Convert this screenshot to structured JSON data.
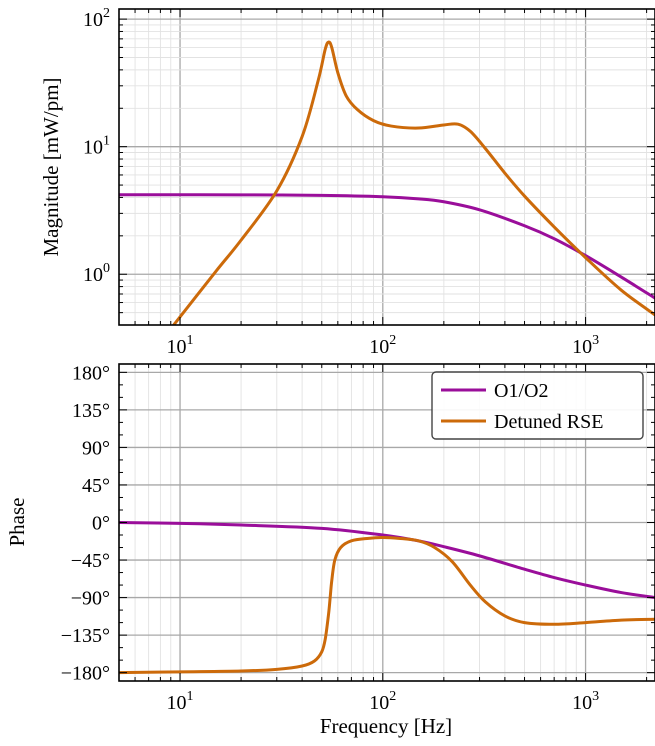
{
  "chart_data": [
    {
      "type": "line",
      "panel": "magnitude",
      "xlabel": "",
      "ylabel": "Magnitude [mW/pm]",
      "xscale": "log",
      "yscale": "log",
      "xlim": [
        5,
        2200
      ],
      "ylim": [
        0.4,
        120
      ],
      "x_ticks": [
        {
          "value": 10,
          "base": "10",
          "exp": "1"
        },
        {
          "value": 100,
          "base": "10",
          "exp": "2"
        },
        {
          "value": 1000,
          "base": "10",
          "exp": "3"
        }
      ],
      "y_ticks": [
        {
          "value": 1,
          "base": "10",
          "exp": "0"
        },
        {
          "value": 10,
          "base": "10",
          "exp": "1"
        },
        {
          "value": 100,
          "base": "10",
          "exp": "2"
        }
      ],
      "grid": true,
      "series": [
        {
          "name": "O1/O2",
          "color": "#9a0e9a",
          "x": [
            5,
            10,
            20,
            50,
            100,
            150,
            200,
            300,
            500,
            700,
            1000,
            1500,
            2200
          ],
          "y": [
            4.2,
            4.2,
            4.19,
            4.15,
            4.05,
            3.9,
            3.7,
            3.2,
            2.4,
            1.9,
            1.4,
            0.95,
            0.65
          ]
        },
        {
          "name": "Detuned RSE",
          "color": "#cc6a0a",
          "x": [
            9.3,
            15,
            20,
            30,
            40,
            48,
            52,
            54,
            56,
            60,
            66,
            75,
            90,
            110,
            150,
            200,
            235,
            270,
            320,
            400,
            500,
            700,
            1000,
            1500,
            2200
          ],
          "y": [
            0.4,
            1.05,
            1.85,
            4.5,
            12,
            33,
            58,
            66,
            60,
            38,
            25,
            19.5,
            16,
            14.5,
            14,
            14.8,
            15,
            13.2,
            9.7,
            6.2,
            4.1,
            2.35,
            1.35,
            0.75,
            0.48
          ]
        }
      ]
    },
    {
      "type": "line",
      "panel": "phase",
      "xlabel": "Frequency [Hz]",
      "ylabel": "Phase",
      "xscale": "log",
      "yscale": "linear",
      "xlim": [
        5,
        2200
      ],
      "ylim": [
        -190,
        190
      ],
      "x_ticks": [
        {
          "value": 10,
          "base": "10",
          "exp": "1"
        },
        {
          "value": 100,
          "base": "10",
          "exp": "2"
        },
        {
          "value": 1000,
          "base": "10",
          "exp": "3"
        }
      ],
      "y_ticks": [
        {
          "value": 180,
          "label": "180°"
        },
        {
          "value": 135,
          "label": "135°"
        },
        {
          "value": 90,
          "label": "90°"
        },
        {
          "value": 45,
          "label": "45°"
        },
        {
          "value": 0,
          "label": "0°"
        },
        {
          "value": -45,
          "label": "−45°"
        },
        {
          "value": -90,
          "label": "−90°"
        },
        {
          "value": -135,
          "label": "−135°"
        },
        {
          "value": -180,
          "label": "−180°"
        }
      ],
      "grid": true,
      "legend": {
        "placement": "top-right",
        "entries": [
          "O1/O2",
          "Detuned RSE"
        ]
      },
      "series": [
        {
          "name": "O1/O2",
          "color": "#9a0e9a",
          "x": [
            5,
            10,
            20,
            50,
            100,
            150,
            200,
            300,
            500,
            700,
            1000,
            1500,
            2200
          ],
          "y": [
            0,
            -1,
            -3,
            -7,
            -15,
            -22,
            -29,
            -40,
            -56,
            -66,
            -75,
            -84,
            -90
          ]
        },
        {
          "name": "Detuned RSE",
          "color": "#cc6a0a",
          "x": [
            5,
            10,
            20,
            30,
            40,
            46,
            50,
            52,
            54,
            55,
            56,
            58,
            62,
            70,
            85,
            100,
            120,
            150,
            180,
            220,
            270,
            320,
            400,
            500,
            700,
            1000,
            1500,
            2200
          ],
          "y": [
            -180,
            -179,
            -178,
            -176,
            -172,
            -166,
            -155,
            -140,
            -110,
            -90,
            -70,
            -45,
            -30,
            -22,
            -19,
            -18,
            -19,
            -22,
            -30,
            -47,
            -75,
            -95,
            -112,
            -120,
            -122,
            -120,
            -117,
            -116
          ]
        }
      ]
    }
  ]
}
